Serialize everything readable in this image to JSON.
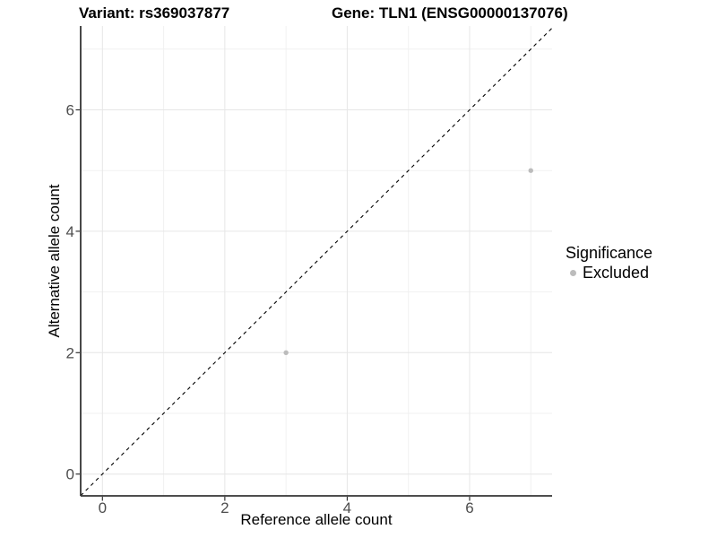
{
  "title": {
    "variant": "Variant: rs369037877",
    "gene": "Gene: TLN1 (ENSG00000137076)"
  },
  "axes": {
    "x_label": "Reference allele count",
    "y_label": "Alternative allele count"
  },
  "legend": {
    "title": "Significance",
    "items": [
      {
        "label": "Excluded",
        "color": "#bcbcbc"
      }
    ]
  },
  "chart_data": {
    "type": "scatter",
    "title": "Variant: rs369037877 — Gene: TLN1 (ENSG00000137076)",
    "xlabel": "Reference allele count",
    "ylabel": "Alternative allele count",
    "xlim": [
      -0.35,
      7.35
    ],
    "ylim": [
      -0.35,
      7.35
    ],
    "x_major_ticks": [
      0,
      2,
      4,
      6
    ],
    "y_major_ticks": [
      0,
      2,
      4,
      6
    ],
    "x_minor_gridlines": [
      1,
      3,
      5,
      7
    ],
    "y_minor_gridlines": [
      1,
      3,
      5,
      7
    ],
    "grid": "on",
    "legend_position": "right",
    "series": [
      {
        "name": "Excluded",
        "color": "#bcbcbc",
        "points": [
          [
            3,
            2
          ],
          [
            7,
            5
          ]
        ]
      }
    ],
    "reference_line": {
      "type": "y=x",
      "style": "dashed",
      "color": "#000000"
    }
  },
  "colors": {
    "background": "#ffffff",
    "grid_major": "#e6e6e6",
    "grid_minor": "#f1f1f1",
    "axis_line": "#343434",
    "tick_mark": "#343434",
    "tick_label": "#4d4d4d",
    "point": "#bcbcbc",
    "dashed_line": "#000000"
  }
}
